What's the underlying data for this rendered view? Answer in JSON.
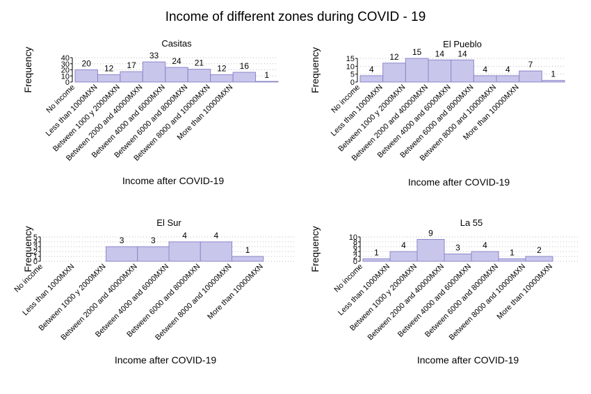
{
  "title": "Income of different zones during COVID - 19",
  "chart_data": [
    {
      "type": "bar",
      "title": "Casitas",
      "x_label": "Income after COVID-19",
      "y_label": "Frequency",
      "categories": [
        "No income",
        "Less than 1000MXN",
        "Between 1000 y 2000MXN",
        "Between 2000 and 40000MXN",
        "Between 4000 and 6000MXN",
        "Between 6000 and 8000MXN",
        "Between 8000 and 10000MXN",
        "More than 10000MXN",
        null
      ],
      "values": [
        20,
        12,
        17,
        33,
        24,
        21,
        12,
        16,
        1
      ],
      "color": "#c9c6ec",
      "ylim": [
        0,
        40
      ],
      "yticks": [
        0,
        10,
        20,
        30,
        40
      ],
      "grid": true
    },
    {
      "type": "bar",
      "title": "El Pueblo",
      "x_label": "Income after COVID-19",
      "y_label": "Frequency",
      "categories": [
        "No income",
        "Less than 1000MXN",
        "Between 1000 y 2000MXN",
        "Between 2000 and 40000MXN",
        "Between 4000 and 6000MXN",
        "Between 6000 and 8000MXN",
        "Between 8000 and 10000MXN",
        "More than 10000MXN",
        null
      ],
      "values": [
        4,
        12,
        15,
        14,
        14,
        4,
        4,
        7,
        1
      ],
      "color": "#c9c6ec",
      "ylim": [
        0,
        15
      ],
      "yticks": [
        0,
        5,
        10,
        15
      ],
      "grid": true
    },
    {
      "type": "bar",
      "title": "El Sur",
      "x_label": "Income after COVID-19",
      "y_label": "Frequency",
      "categories": [
        "No income",
        "Less than 1000MXN",
        "Between 1000 y 2000MXN",
        "Between 2000 and 40000MXN",
        "Between 4000 and 6000MXN",
        "Between 6000 and 8000MXN",
        "Between 8000 and 10000MXN",
        "More than 10000MXN"
      ],
      "values": [
        null,
        null,
        3,
        3,
        4,
        4,
        1,
        null
      ],
      "color": "#c9c6ec",
      "ylim": [
        0,
        5
      ],
      "yticks": [
        0,
        1,
        2,
        3,
        4,
        5
      ],
      "grid": true
    },
    {
      "type": "bar",
      "title": "La 55",
      "x_label": "Income after COVID-19",
      "y_label": "Frequency",
      "categories": [
        "No income",
        "Less than 1000MXN",
        "Between 1000 y 2000MXN",
        "Between 2000 and 40000MXN",
        "Between 4000 and 6000MXN",
        "Between 6000 and 8000MXN",
        "Between 8000 and 10000MXN",
        "More than 10000MXN"
      ],
      "values": [
        1,
        4,
        9,
        3,
        4,
        1,
        2,
        null
      ],
      "color": "#c9c6ec",
      "ylim": [
        0,
        10
      ],
      "yticks": [
        0,
        2,
        4,
        6,
        8,
        10
      ],
      "grid": true
    }
  ]
}
